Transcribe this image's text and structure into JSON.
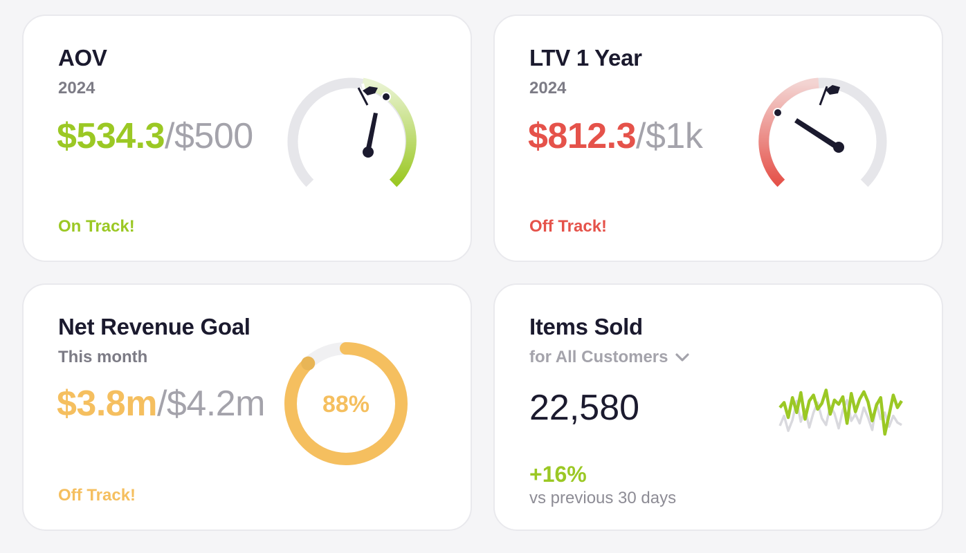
{
  "colors": {
    "green": "#9bc824",
    "red": "#e5524a",
    "amber": "#f5bf5f",
    "dark": "#1b1a2e",
    "muted": "#a4a3ab",
    "track": "#e6e6ea"
  },
  "aov": {
    "title": "AOV",
    "subtitle": "2024",
    "current": "$534.3",
    "separator": "/",
    "target": "$500",
    "status": "On Track!",
    "gauge": {
      "icon": "flag-icon",
      "target_position": 0.5,
      "current_position": 0.53
    }
  },
  "ltv": {
    "title": "LTV 1 Year",
    "subtitle": "2024",
    "current": "$812.3",
    "separator": "/",
    "target": "$1k",
    "status": "Off Track!",
    "gauge": {
      "icon": "flag-icon",
      "target_position": 0.5,
      "current_position": 0.31
    }
  },
  "net_revenue": {
    "title": "Net Revenue Goal",
    "subtitle": "This month",
    "current": "$3.8m",
    "separator": "/",
    "target": "$4.2m",
    "status": "Off Track!",
    "progress_label": "88%",
    "progress": 0.88
  },
  "items_sold": {
    "title": "Items Sold",
    "filter_label": "for All Customers",
    "filter_icon": "chevron-down-icon",
    "count": "22,580",
    "change": "+16%",
    "change_note": "vs previous 30 days",
    "sparkline": {
      "current": [
        52,
        58,
        40,
        64,
        46,
        70,
        38,
        60,
        67,
        50,
        57,
        73,
        44,
        61,
        56,
        65,
        33,
        69,
        47,
        62,
        71,
        59,
        36,
        55,
        64,
        20,
        43,
        67,
        52,
        60
      ],
      "previous": [
        30,
        42,
        24,
        37,
        60,
        35,
        50,
        28,
        46,
        58,
        39,
        31,
        54,
        45,
        27,
        49,
        61,
        36,
        44,
        33,
        52,
        40,
        25,
        57,
        38,
        46,
        29,
        42,
        34,
        31
      ]
    }
  }
}
